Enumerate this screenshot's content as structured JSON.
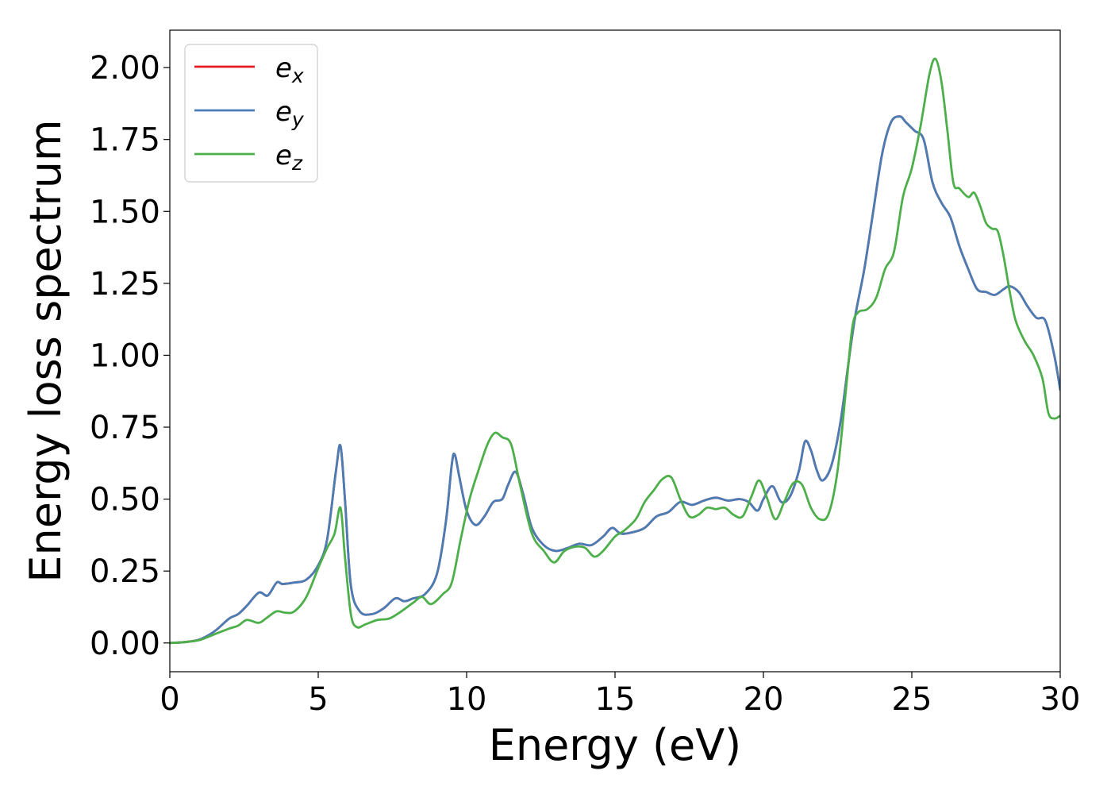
{
  "chart_data": {
    "type": "line",
    "title": "",
    "xlabel": "Energy (eV)",
    "ylabel": "Energy loss spectrum",
    "xlim": [
      0,
      30
    ],
    "ylim": [
      -0.1,
      2.13
    ],
    "xticks": [
      0,
      5,
      10,
      15,
      20,
      25,
      30
    ],
    "xtick_labels": [
      "0",
      "5",
      "10",
      "15",
      "20",
      "25",
      "30"
    ],
    "yticks": [
      0.0,
      0.25,
      0.5,
      0.75,
      1.0,
      1.25,
      1.5,
      1.75,
      2.0
    ],
    "ytick_labels": [
      "0.00",
      "0.25",
      "0.50",
      "0.75",
      "1.00",
      "1.25",
      "1.50",
      "1.75",
      "2.00"
    ],
    "grid": false,
    "legend_position": "top-left",
    "series": [
      {
        "name": "e",
        "subscript": "x",
        "color": "#e41a1c",
        "x": [
          0,
          0.5,
          1.0,
          1.5,
          2.0,
          2.3,
          2.6,
          3.0,
          3.3,
          3.6,
          3.8,
          4.2,
          4.6,
          5.0,
          5.3,
          5.6,
          5.75,
          5.9,
          6.1,
          6.4,
          6.8,
          7.2,
          7.6,
          7.9,
          8.2,
          8.6,
          9.0,
          9.3,
          9.5,
          9.6,
          9.75,
          10.0,
          10.3,
          10.6,
          10.9,
          11.2,
          11.4,
          11.65,
          11.9,
          12.2,
          12.6,
          13.0,
          13.4,
          13.8,
          14.2,
          14.6,
          14.9,
          15.2,
          15.6,
          16.0,
          16.4,
          16.8,
          17.2,
          17.6,
          18.0,
          18.4,
          18.8,
          19.2,
          19.5,
          19.8,
          20.0,
          20.3,
          20.6,
          20.9,
          21.2,
          21.4,
          21.6,
          21.8,
          22.0,
          22.3,
          22.6,
          22.9,
          23.1,
          23.4,
          23.7,
          24.0,
          24.3,
          24.6,
          24.8,
          25.1,
          25.4,
          25.7,
          26.0,
          26.3,
          26.6,
          26.9,
          27.2,
          27.5,
          27.8,
          28.1,
          28.3,
          28.6,
          28.9,
          29.2,
          29.5,
          29.8,
          30.0
        ],
        "y": [
          0.0,
          0.003,
          0.012,
          0.04,
          0.085,
          0.1,
          0.13,
          0.175,
          0.165,
          0.21,
          0.205,
          0.21,
          0.22,
          0.27,
          0.36,
          0.6,
          0.685,
          0.5,
          0.2,
          0.11,
          0.1,
          0.12,
          0.155,
          0.145,
          0.155,
          0.17,
          0.24,
          0.42,
          0.62,
          0.655,
          0.58,
          0.46,
          0.41,
          0.44,
          0.49,
          0.5,
          0.55,
          0.595,
          0.52,
          0.4,
          0.34,
          0.32,
          0.33,
          0.345,
          0.34,
          0.37,
          0.4,
          0.38,
          0.385,
          0.4,
          0.44,
          0.455,
          0.49,
          0.48,
          0.495,
          0.505,
          0.495,
          0.5,
          0.49,
          0.46,
          0.5,
          0.545,
          0.49,
          0.51,
          0.6,
          0.7,
          0.67,
          0.6,
          0.565,
          0.62,
          0.77,
          1.0,
          1.14,
          1.3,
          1.5,
          1.7,
          1.81,
          1.83,
          1.81,
          1.78,
          1.75,
          1.6,
          1.53,
          1.48,
          1.38,
          1.3,
          1.23,
          1.22,
          1.21,
          1.23,
          1.24,
          1.22,
          1.17,
          1.13,
          1.12,
          1.0,
          0.88
        ]
      },
      {
        "name": "e",
        "subscript": "y",
        "color": "#4a7db5",
        "x": [
          0,
          0.5,
          1.0,
          1.5,
          2.0,
          2.3,
          2.6,
          3.0,
          3.3,
          3.6,
          3.8,
          4.2,
          4.6,
          5.0,
          5.3,
          5.6,
          5.75,
          5.9,
          6.1,
          6.4,
          6.8,
          7.2,
          7.6,
          7.9,
          8.2,
          8.6,
          9.0,
          9.3,
          9.5,
          9.6,
          9.75,
          10.0,
          10.3,
          10.6,
          10.9,
          11.2,
          11.4,
          11.65,
          11.9,
          12.2,
          12.6,
          13.0,
          13.4,
          13.8,
          14.2,
          14.6,
          14.9,
          15.2,
          15.6,
          16.0,
          16.4,
          16.8,
          17.2,
          17.6,
          18.0,
          18.4,
          18.8,
          19.2,
          19.5,
          19.8,
          20.0,
          20.3,
          20.6,
          20.9,
          21.2,
          21.4,
          21.6,
          21.8,
          22.0,
          22.3,
          22.6,
          22.9,
          23.1,
          23.4,
          23.7,
          24.0,
          24.3,
          24.6,
          24.8,
          25.1,
          25.4,
          25.7,
          26.0,
          26.3,
          26.6,
          26.9,
          27.2,
          27.5,
          27.8,
          28.1,
          28.3,
          28.6,
          28.9,
          29.2,
          29.5,
          29.8,
          30.0
        ],
        "y": [
          0.0,
          0.003,
          0.012,
          0.04,
          0.085,
          0.1,
          0.13,
          0.175,
          0.165,
          0.21,
          0.205,
          0.21,
          0.22,
          0.27,
          0.36,
          0.6,
          0.685,
          0.5,
          0.2,
          0.11,
          0.1,
          0.12,
          0.155,
          0.145,
          0.155,
          0.17,
          0.24,
          0.42,
          0.62,
          0.655,
          0.58,
          0.46,
          0.41,
          0.44,
          0.49,
          0.5,
          0.55,
          0.595,
          0.52,
          0.4,
          0.34,
          0.32,
          0.33,
          0.345,
          0.34,
          0.37,
          0.4,
          0.38,
          0.385,
          0.4,
          0.44,
          0.455,
          0.49,
          0.48,
          0.495,
          0.505,
          0.495,
          0.5,
          0.49,
          0.46,
          0.5,
          0.545,
          0.49,
          0.51,
          0.6,
          0.7,
          0.67,
          0.6,
          0.565,
          0.62,
          0.77,
          1.0,
          1.14,
          1.3,
          1.5,
          1.7,
          1.81,
          1.83,
          1.81,
          1.78,
          1.75,
          1.6,
          1.53,
          1.48,
          1.38,
          1.3,
          1.23,
          1.22,
          1.21,
          1.23,
          1.24,
          1.22,
          1.17,
          1.13,
          1.12,
          1.0,
          0.88
        ]
      },
      {
        "name": "e",
        "subscript": "z",
        "color": "#4daf4a",
        "x": [
          0,
          0.5,
          1.0,
          1.5,
          2.0,
          2.3,
          2.6,
          3.0,
          3.3,
          3.6,
          3.9,
          4.2,
          4.6,
          5.0,
          5.3,
          5.55,
          5.75,
          5.9,
          6.1,
          6.3,
          6.6,
          7.0,
          7.4,
          7.8,
          8.2,
          8.5,
          8.8,
          9.2,
          9.5,
          9.8,
          10.1,
          10.4,
          10.7,
          10.95,
          11.2,
          11.5,
          11.8,
          12.2,
          12.6,
          12.95,
          13.3,
          13.7,
          14.0,
          14.3,
          14.6,
          15.0,
          15.3,
          15.7,
          16.0,
          16.3,
          16.6,
          16.9,
          17.2,
          17.5,
          17.8,
          18.1,
          18.4,
          18.7,
          19.0,
          19.3,
          19.6,
          19.85,
          20.1,
          20.4,
          20.7,
          21.0,
          21.3,
          21.6,
          21.9,
          22.2,
          22.5,
          22.8,
          23.0,
          23.2,
          23.5,
          23.8,
          24.1,
          24.4,
          24.7,
          25.0,
          25.3,
          25.6,
          25.8,
          26.0,
          26.2,
          26.4,
          26.6,
          26.9,
          27.1,
          27.3,
          27.5,
          27.7,
          27.9,
          28.1,
          28.3,
          28.5,
          28.8,
          29.1,
          29.4,
          29.6,
          29.8,
          30.0
        ],
        "y": [
          0.0,
          0.003,
          0.01,
          0.03,
          0.05,
          0.06,
          0.08,
          0.07,
          0.09,
          0.11,
          0.105,
          0.11,
          0.16,
          0.26,
          0.33,
          0.38,
          0.47,
          0.3,
          0.1,
          0.055,
          0.065,
          0.08,
          0.085,
          0.11,
          0.14,
          0.16,
          0.135,
          0.17,
          0.21,
          0.36,
          0.5,
          0.6,
          0.69,
          0.73,
          0.715,
          0.69,
          0.55,
          0.38,
          0.32,
          0.28,
          0.32,
          0.335,
          0.33,
          0.3,
          0.32,
          0.37,
          0.39,
          0.43,
          0.49,
          0.53,
          0.57,
          0.575,
          0.5,
          0.44,
          0.445,
          0.47,
          0.465,
          0.47,
          0.445,
          0.44,
          0.51,
          0.565,
          0.51,
          0.43,
          0.49,
          0.555,
          0.55,
          0.47,
          0.43,
          0.45,
          0.6,
          0.9,
          1.1,
          1.15,
          1.16,
          1.2,
          1.3,
          1.36,
          1.55,
          1.65,
          1.8,
          1.98,
          2.03,
          1.95,
          1.78,
          1.6,
          1.58,
          1.55,
          1.565,
          1.52,
          1.46,
          1.44,
          1.43,
          1.34,
          1.22,
          1.12,
          1.05,
          1.0,
          0.92,
          0.8,
          0.78,
          0.79
        ]
      }
    ]
  }
}
